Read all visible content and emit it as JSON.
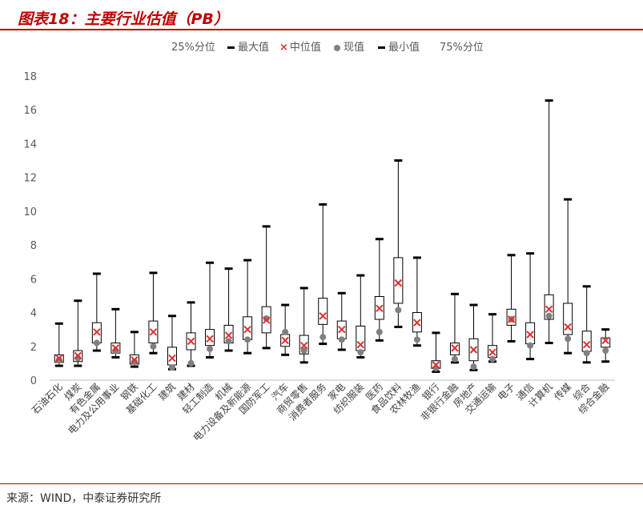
{
  "header": {
    "title": "图表18：主要行业估值（PB）"
  },
  "legend": {
    "items": [
      {
        "key": "p25",
        "label": "25%分位"
      },
      {
        "key": "max",
        "label": "最大值"
      },
      {
        "key": "median",
        "label": "中位值"
      },
      {
        "key": "current",
        "label": "现值"
      },
      {
        "key": "min",
        "label": "最小值"
      },
      {
        "key": "p75",
        "label": "75%分位"
      }
    ]
  },
  "footer": {
    "source": "来源：WIND，中泰证券研究所"
  },
  "colors": {
    "title": "#c00000",
    "median": "#e03030",
    "current": "#808080",
    "box": "#000000"
  },
  "chart_data": {
    "type": "box",
    "title": "",
    "xlabel": "",
    "ylabel": "",
    "ylim": [
      0,
      18
    ],
    "yticks": [
      0,
      2,
      4,
      6,
      8,
      10,
      12,
      14,
      16,
      18
    ],
    "grid": false,
    "legend_position": "top",
    "categories": [
      "石油石化",
      "煤炭",
      "有色金属",
      "电力及公用事业",
      "钢铁",
      "基础化工",
      "建筑",
      "建材",
      "轻工制造",
      "机械",
      "电力设备及新能源",
      "国防军工",
      "汽车",
      "商贸零售",
      "消费者服务",
      "家电",
      "纺织服装",
      "医药",
      "食品饮料",
      "农林牧渔",
      "银行",
      "非银行金融",
      "房地产",
      "交通运输",
      "电子",
      "通信",
      "计算机",
      "传媒",
      "综合",
      "综合金融"
    ],
    "series": [
      {
        "name": "最大值",
        "values": [
          3.35,
          4.7,
          6.3,
          4.2,
          2.85,
          6.35,
          3.8,
          4.6,
          6.95,
          6.6,
          7.1,
          9.1,
          4.45,
          5.45,
          10.4,
          5.15,
          6.2,
          8.35,
          13.0,
          7.25,
          2.8,
          5.1,
          4.45,
          3.9,
          7.4,
          7.5,
          16.55,
          10.7,
          5.55,
          3.0
        ]
      },
      {
        "name": "75%分位",
        "values": [
          1.5,
          1.75,
          3.4,
          2.2,
          1.5,
          3.5,
          1.95,
          2.8,
          3.0,
          3.25,
          3.75,
          4.35,
          2.7,
          2.65,
          4.85,
          3.5,
          3.2,
          4.95,
          7.25,
          4.0,
          1.15,
          2.2,
          2.45,
          2.05,
          4.2,
          3.4,
          5.05,
          4.55,
          2.9,
          2.5
        ]
      },
      {
        "name": "中位值",
        "values": [
          1.3,
          1.45,
          2.85,
          1.9,
          1.2,
          2.85,
          1.3,
          2.3,
          2.45,
          2.65,
          3.0,
          3.55,
          2.35,
          2.05,
          3.8,
          3.0,
          2.1,
          4.25,
          5.75,
          3.4,
          0.9,
          1.9,
          1.8,
          1.65,
          3.6,
          2.7,
          4.2,
          3.15,
          2.1,
          2.35
        ]
      },
      {
        "name": "现值",
        "values": [
          1.2,
          1.3,
          2.2,
          1.75,
          1.1,
          2.0,
          0.75,
          1.0,
          1.85,
          2.3,
          2.4,
          3.65,
          2.85,
          1.75,
          2.55,
          2.4,
          1.65,
          2.85,
          4.15,
          2.4,
          0.7,
          1.25,
          0.8,
          1.25,
          3.6,
          2.05,
          3.8,
          2.45,
          1.6,
          1.75
        ]
      },
      {
        "name": "25%分位",
        "values": [
          1.05,
          1.1,
          2.2,
          1.6,
          0.95,
          2.2,
          0.9,
          1.8,
          2.05,
          2.2,
          2.4,
          2.8,
          2.0,
          1.55,
          3.3,
          2.45,
          1.75,
          3.6,
          4.55,
          2.85,
          0.7,
          1.5,
          1.15,
          1.35,
          3.25,
          2.15,
          3.6,
          2.7,
          1.7,
          1.95
        ]
      },
      {
        "name": "最小值",
        "values": [
          0.85,
          0.85,
          1.75,
          1.35,
          0.8,
          1.6,
          0.65,
          0.85,
          1.35,
          1.75,
          1.6,
          1.9,
          1.5,
          1.05,
          2.15,
          1.8,
          1.35,
          2.35,
          3.15,
          2.05,
          0.5,
          1.05,
          0.6,
          1.1,
          2.3,
          1.25,
          2.2,
          1.6,
          1.05,
          1.1
        ]
      }
    ]
  }
}
